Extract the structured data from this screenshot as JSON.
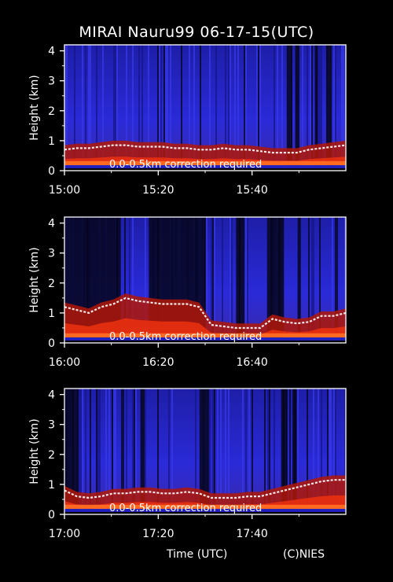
{
  "title": "MIRAI Nauru99 06-17-15(UTC)",
  "footer": {
    "xlabel": "Time (UTC)",
    "credit": "(C)NIES"
  },
  "colors": {
    "background": "#000000",
    "noise": "#2a2ad8",
    "aerosol": "#e83010",
    "cloud": "#ffffff"
  },
  "chart_data": [
    {
      "type": "heatmap",
      "ylabel": "Height (km)",
      "yticks": [
        "0",
        "1",
        "2",
        "3",
        "4"
      ],
      "ylim": [
        0,
        4.2
      ],
      "xticks": [
        "15:00",
        "15:20",
        "15:40"
      ],
      "xlim": [
        "15:00",
        "16:00"
      ],
      "annotation": "0.0-0.5km correction required",
      "boundary_layer_top_km": [
        0.7,
        0.75,
        0.75,
        0.8,
        0.85,
        0.85,
        0.8,
        0.8,
        0.8,
        0.75,
        0.75,
        0.7,
        0.7,
        0.75,
        0.7,
        0.7,
        0.65,
        0.6,
        0.6,
        0.6,
        0.7,
        0.75,
        0.8,
        0.85
      ]
    },
    {
      "type": "heatmap",
      "ylabel": "Height (km)",
      "yticks": [
        "0",
        "1",
        "2",
        "3",
        "4"
      ],
      "ylim": [
        0,
        4.2
      ],
      "xticks": [
        "16:00",
        "16:20",
        "16:40"
      ],
      "xlim": [
        "16:00",
        "17:00"
      ],
      "annotation": "0.0-0.5km correction required",
      "boundary_layer_top_km": [
        1.2,
        1.1,
        1.0,
        1.2,
        1.3,
        1.5,
        1.4,
        1.35,
        1.3,
        1.3,
        1.3,
        1.2,
        0.6,
        0.55,
        0.5,
        0.5,
        0.5,
        0.8,
        0.7,
        0.65,
        0.7,
        0.9,
        0.9,
        1.0
      ]
    },
    {
      "type": "heatmap",
      "ylabel": "Height (km)",
      "yticks": [
        "0",
        "1",
        "2",
        "3",
        "4"
      ],
      "ylim": [
        0,
        4.2
      ],
      "xticks": [
        "17:00",
        "17:20",
        "17:40"
      ],
      "xlim": [
        "17:00",
        "18:00"
      ],
      "annotation": "0.0-0.5km correction required",
      "boundary_layer_top_km": [
        0.8,
        0.6,
        0.55,
        0.6,
        0.7,
        0.7,
        0.75,
        0.75,
        0.7,
        0.7,
        0.75,
        0.7,
        0.55,
        0.55,
        0.55,
        0.6,
        0.6,
        0.7,
        0.8,
        0.9,
        1.0,
        1.1,
        1.15,
        1.15
      ]
    }
  ]
}
